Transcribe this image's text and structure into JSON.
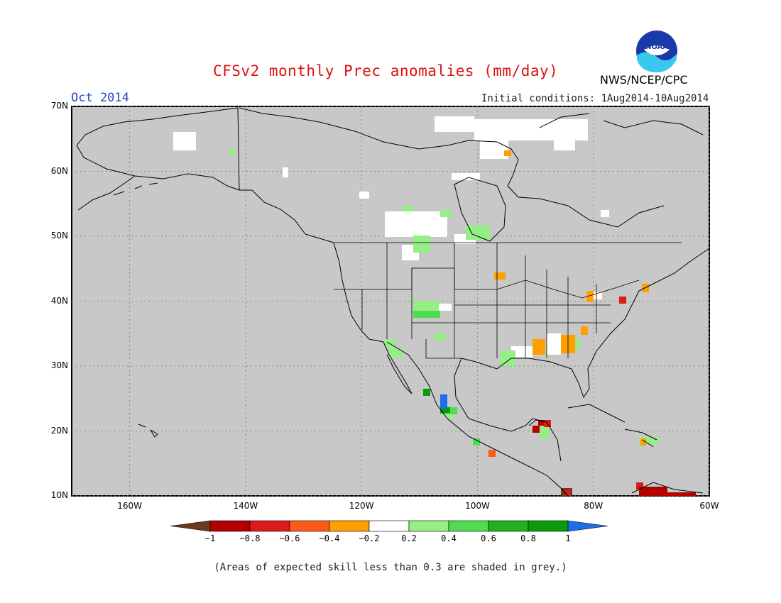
{
  "title": "CFSv2 monthly Prec anomalies (mm/day)",
  "forecast_month": "Oct 2014",
  "initial_conditions": "Initial conditions: 1Aug2014-10Aug2014",
  "agency": "NWS/NCEP/CPC",
  "logo_text": "NOAA",
  "footnote": "(Areas of expected skill less than 0.3 are shaded in grey.)",
  "lat_labels": [
    {
      "text": "70N",
      "lat": 70
    },
    {
      "text": "60N",
      "lat": 60
    },
    {
      "text": "50N",
      "lat": 50
    },
    {
      "text": "40N",
      "lat": 40
    },
    {
      "text": "30N",
      "lat": 30
    },
    {
      "text": "20N",
      "lat": 20
    },
    {
      "text": "10N",
      "lat": 10
    }
  ],
  "lon_labels": [
    {
      "text": "160W",
      "lon": -160
    },
    {
      "text": "140W",
      "lon": -140
    },
    {
      "text": "120W",
      "lon": -120
    },
    {
      "text": "100W",
      "lon": -100
    },
    {
      "text": "80W",
      "lon": -80
    },
    {
      "text": "60W",
      "lon": -60
    }
  ],
  "colorbar": {
    "labels": [
      "−1",
      "−0.8",
      "−0.6",
      "−0.4",
      "−0.2",
      "0.2",
      "0.4",
      "0.6",
      "0.8",
      "1"
    ],
    "colors": [
      "#6b3a1e",
      "#b50000",
      "#dd1a1a",
      "#ff5a1a",
      "#ff9f00",
      "#ffffff",
      "#96ee86",
      "#50dc50",
      "#22b022",
      "#0b9a0b",
      "#1e6ee6"
    ]
  },
  "colors": {
    "skill_grey": "#c8c8c8",
    "gridline": "#888888"
  }
}
